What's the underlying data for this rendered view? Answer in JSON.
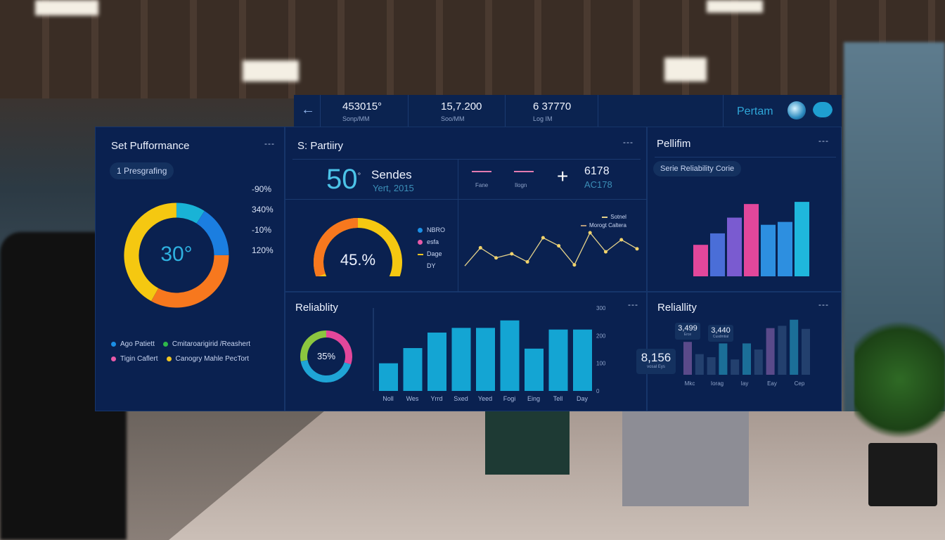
{
  "topbar": {
    "stats": [
      {
        "value": "453015°",
        "label": "Sonp/MM"
      },
      {
        "value": "15,7.200",
        "label": "Soo/MM"
      },
      {
        "value": "6 37770",
        "label": "Log IM"
      }
    ],
    "brand": "Pertam"
  },
  "panel1": {
    "title": "Set Pufformance",
    "more": "---",
    "pill": "1 Presgrafing",
    "percents": [
      "-90%",
      "340%",
      "-10%",
      "120%"
    ],
    "center": "30°",
    "segments": [
      {
        "color": "#19b3d6",
        "value": 0.09
      },
      {
        "color": "#1b7ee0",
        "value": 0.16
      },
      {
        "color": "#f7781e",
        "value": 0.33
      },
      {
        "color": "#f5c811",
        "value": 0.42
      }
    ],
    "legend": [
      {
        "label": "Ago Patiett",
        "color": "#1b8fe6"
      },
      {
        "label": "Cmitaroarigirid /Reashert",
        "color": "#2fb84a"
      },
      {
        "label": "Tigin Caflert",
        "color": "#e85aa8"
      },
      {
        "label": "Canogry Mahle PecTort",
        "color": "#f2c522"
      }
    ]
  },
  "panel2": {
    "title": "S: Partiiry",
    "more": "---",
    "big": "50",
    "big_sup": "°",
    "big_label": "Sendes",
    "big_sub": "Yert, 2015",
    "lines_legend": [
      "Fane",
      "Ilogn"
    ],
    "kpi_value": "6178",
    "kpi_sub": "AC178",
    "gauge": {
      "value": "45.%",
      "fraction": 0.45,
      "legend": [
        {
          "label": "NBRO",
          "color": "#1b8fe6"
        },
        {
          "label": "esfa",
          "color": "#e85aa8"
        },
        {
          "label": "Dage",
          "color": "#f2c522"
        },
        {
          "label": "DY",
          "color": ""
        }
      ]
    },
    "line": {
      "legend": [
        "Sotnel",
        "Morogt Caltera"
      ],
      "values": [
        2,
        20,
        10,
        14,
        6,
        30,
        22,
        3,
        35,
        16,
        28,
        19
      ]
    }
  },
  "panel3": {
    "title": "Pellifim",
    "more": "---",
    "pill": "Serie Reliability Corie",
    "bars": [
      {
        "value": 44,
        "color": "#e2479b"
      },
      {
        "value": 60,
        "color": "#4a6ed8"
      },
      {
        "value": 82,
        "color": "#7a5bd0"
      },
      {
        "value": 101,
        "color": "#e2479b"
      },
      {
        "value": 72,
        "color": "#2d8fe0"
      },
      {
        "value": 76,
        "color": "#2d8fe0"
      },
      {
        "value": 104,
        "color": "#1fb7dc"
      }
    ]
  },
  "panel4": {
    "title": "Reliablity",
    "more": "---",
    "donut": "35%",
    "donut_segments": [
      {
        "color": "#e2479b",
        "value": 0.3
      },
      {
        "color": "#1fa5d6",
        "value": 0.42
      },
      {
        "color": "#8cc63f",
        "value": 0.28
      }
    ],
    "y_ticks": [
      "0",
      "100",
      "200",
      "300"
    ],
    "categories": [
      "Noll",
      "Wes",
      "Yrrd",
      "Sxed",
      "Yeed",
      "Fogi",
      "Eing",
      "Tell",
      "Day"
    ],
    "values": [
      100,
      155,
      211,
      228,
      228,
      255,
      153,
      222,
      222
    ]
  },
  "panel5": {
    "title": "Reliallity",
    "more": "---",
    "tooltips": [
      {
        "value": "8,156",
        "label": "vosal Eys"
      },
      {
        "value": "3,499",
        "label": "Erce"
      },
      {
        "value": "3,440",
        "label": "Cusdmtial"
      }
    ],
    "bars": [
      {
        "value": 43,
        "color": "#5a4a8a"
      },
      {
        "value": 27,
        "color": "#23406e"
      },
      {
        "value": 23,
        "color": "#23406e"
      },
      {
        "value": 41,
        "color": "#1b6f98"
      },
      {
        "value": 20,
        "color": "#23406e"
      },
      {
        "value": 41,
        "color": "#1b6f98"
      },
      {
        "value": 33,
        "color": "#23406e"
      },
      {
        "value": 61,
        "color": "#5a4a8a"
      },
      {
        "value": 64,
        "color": "#23406e"
      },
      {
        "value": 72,
        "color": "#1b6f98"
      },
      {
        "value": 60,
        "color": "#23406e"
      }
    ],
    "categories": [
      "Mkc",
      "Iorag",
      "Iay",
      "Eay",
      "Cep"
    ]
  }
}
